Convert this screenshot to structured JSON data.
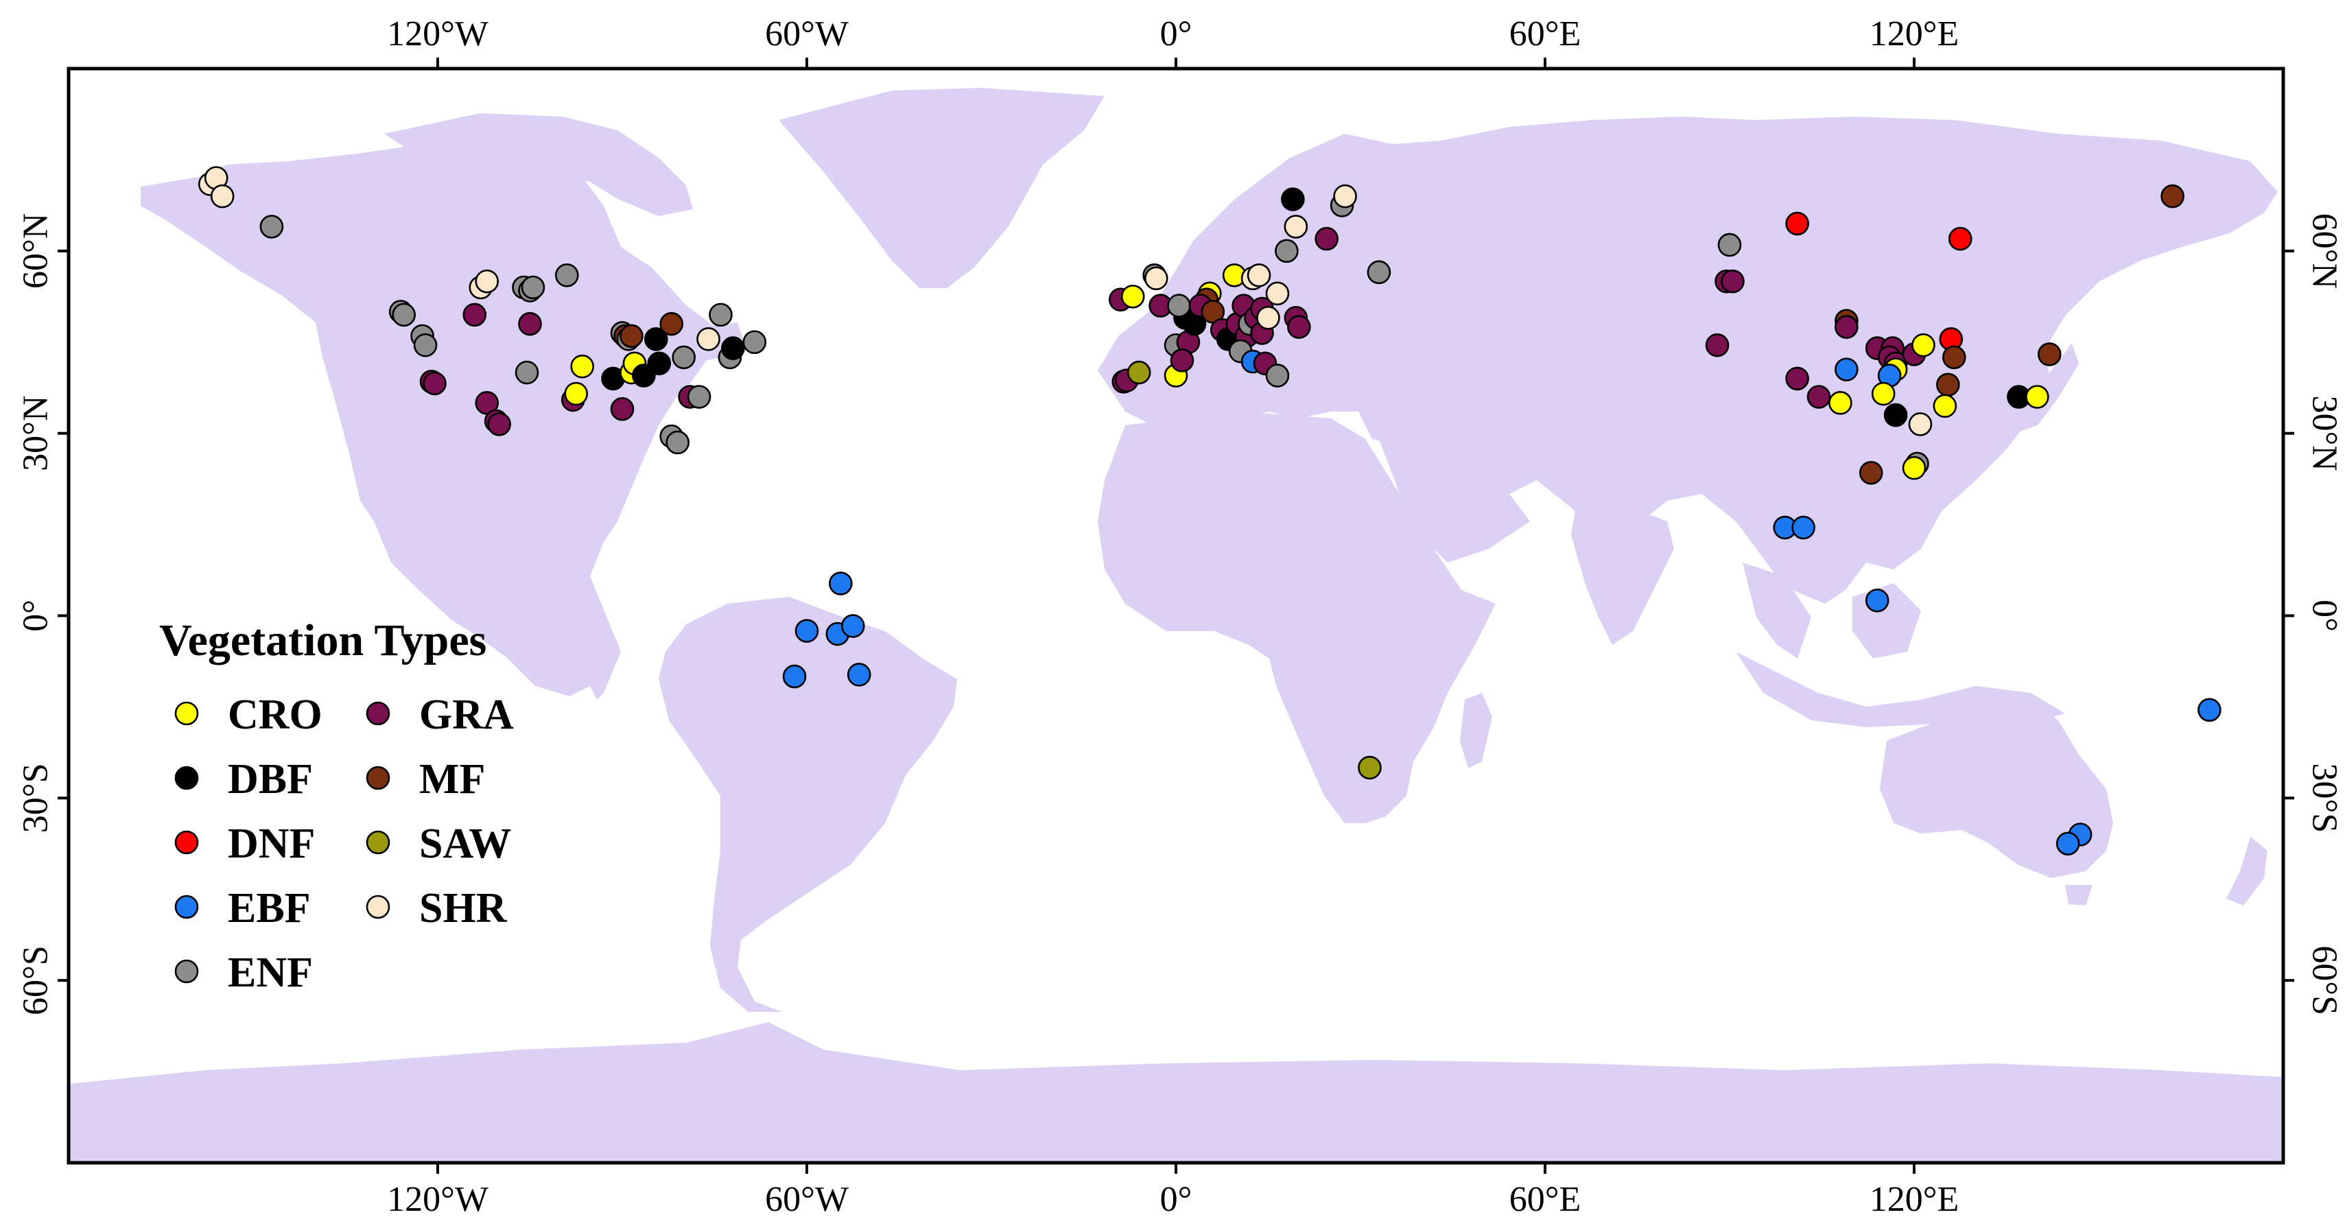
{
  "map": {
    "lon_range": [
      -180,
      180
    ],
    "lat_range": [
      -90,
      90
    ],
    "land_color": "#dcd1f4",
    "ocean_color": "#ffffff",
    "x_ticks": [
      {
        "lon": -120,
        "label": "120°W"
      },
      {
        "lon": -60,
        "label": "60°W"
      },
      {
        "lon": 0,
        "label": "0°"
      },
      {
        "lon": 60,
        "label": "60°E"
      },
      {
        "lon": 120,
        "label": "120°E"
      }
    ],
    "y_ticks": [
      {
        "lat": 60,
        "label": "60°N"
      },
      {
        "lat": 30,
        "label": "30°N"
      },
      {
        "lat": 0,
        "label": "0°"
      },
      {
        "lat": -30,
        "label": "30°S"
      },
      {
        "lat": -60,
        "label": "60°S"
      }
    ]
  },
  "legend": {
    "title": "Vegetation Types",
    "placement": "lower-left",
    "items": [
      {
        "code": "CRO",
        "color": "#ffff00"
      },
      {
        "code": "DBF",
        "color": "#000000"
      },
      {
        "code": "DNF",
        "color": "#ff0000"
      },
      {
        "code": "EBF",
        "color": "#1e78f0"
      },
      {
        "code": "ENF",
        "color": "#8c8c8c"
      },
      {
        "code": "GRA",
        "color": "#7a0f50"
      },
      {
        "code": "MF",
        "color": "#7a3010"
      },
      {
        "code": "SAW",
        "color": "#9a9a10"
      },
      {
        "code": "SHR",
        "color": "#fbe8cc"
      }
    ]
  },
  "sites": [
    {
      "type": "SHR",
      "lon": -157,
      "lat": 71
    },
    {
      "type": "SHR",
      "lon": -156,
      "lat": 72
    },
    {
      "type": "SHR",
      "lon": -155,
      "lat": 69
    },
    {
      "type": "ENF",
      "lon": -147,
      "lat": 64
    },
    {
      "type": "ENF",
      "lon": -126,
      "lat": 50
    },
    {
      "type": "ENF",
      "lon": -125.5,
      "lat": 49.5
    },
    {
      "type": "ENF",
      "lon": -122.5,
      "lat": 46
    },
    {
      "type": "ENF",
      "lon": -122,
      "lat": 44.5
    },
    {
      "type": "GRA",
      "lon": -121,
      "lat": 38.5
    },
    {
      "type": "GRA",
      "lon": -120.5,
      "lat": 38.2
    },
    {
      "type": "SHR",
      "lon": -113,
      "lat": 54
    },
    {
      "type": "SHR",
      "lon": -112,
      "lat": 55
    },
    {
      "type": "GRA",
      "lon": -114,
      "lat": 49.5
    },
    {
      "type": "GRA",
      "lon": -112,
      "lat": 35
    },
    {
      "type": "GRA",
      "lon": -110.5,
      "lat": 32
    },
    {
      "type": "GRA",
      "lon": -110,
      "lat": 31.5
    },
    {
      "type": "ENF",
      "lon": -106,
      "lat": 54
    },
    {
      "type": "ENF",
      "lon": -105,
      "lat": 53.5
    },
    {
      "type": "ENF",
      "lon": -104.5,
      "lat": 54
    },
    {
      "type": "GRA",
      "lon": -105,
      "lat": 48
    },
    {
      "type": "ENF",
      "lon": -105.5,
      "lat": 40
    },
    {
      "type": "ENF",
      "lon": -99,
      "lat": 56
    },
    {
      "type": "GRA",
      "lon": -98,
      "lat": 35.5
    },
    {
      "type": "CRO",
      "lon": -97.5,
      "lat": 36.5
    },
    {
      "type": "CRO",
      "lon": -96.5,
      "lat": 41
    },
    {
      "type": "ENF",
      "lon": -90,
      "lat": 46.5
    },
    {
      "type": "MF",
      "lon": -89.5,
      "lat": 46
    },
    {
      "type": "ENF",
      "lon": -89,
      "lat": 45.5
    },
    {
      "type": "MF",
      "lon": -88.5,
      "lat": 46
    },
    {
      "type": "DBF",
      "lon": -91.5,
      "lat": 39
    },
    {
      "type": "CRO",
      "lon": -88.5,
      "lat": 40
    },
    {
      "type": "CRO",
      "lon": -88,
      "lat": 41.5
    },
    {
      "type": "GRA",
      "lon": -90,
      "lat": 34
    },
    {
      "type": "DBF",
      "lon": -86.5,
      "lat": 39.5
    },
    {
      "type": "DBF",
      "lon": -84.5,
      "lat": 45.5
    },
    {
      "type": "DBF",
      "lon": -84,
      "lat": 41.5
    },
    {
      "type": "MF",
      "lon": -82,
      "lat": 48
    },
    {
      "type": "ENF",
      "lon": -80,
      "lat": 42.5
    },
    {
      "type": "GRA",
      "lon": -79,
      "lat": 36
    },
    {
      "type": "ENF",
      "lon": -77.5,
      "lat": 36
    },
    {
      "type": "ENF",
      "lon": -82,
      "lat": 29.5
    },
    {
      "type": "ENF",
      "lon": -81,
      "lat": 28.5
    },
    {
      "type": "SHR",
      "lon": -76,
      "lat": 45.5
    },
    {
      "type": "ENF",
      "lon": -74,
      "lat": 49.5
    },
    {
      "type": "ENF",
      "lon": -72.5,
      "lat": 42.5
    },
    {
      "type": "DBF",
      "lon": -72,
      "lat": 44
    },
    {
      "type": "ENF",
      "lon": -68.5,
      "lat": 45
    },
    {
      "type": "EBF",
      "lon": -54.5,
      "lat": 5.3
    },
    {
      "type": "EBF",
      "lon": -60,
      "lat": -2.5
    },
    {
      "type": "EBF",
      "lon": -55,
      "lat": -3
    },
    {
      "type": "EBF",
      "lon": -52.5,
      "lat": -1.7
    },
    {
      "type": "EBF",
      "lon": -62,
      "lat": -10
    },
    {
      "type": "EBF",
      "lon": -51.5,
      "lat": -9.7
    },
    {
      "type": "GRA",
      "lon": -9,
      "lat": 52
    },
    {
      "type": "CRO",
      "lon": -7,
      "lat": 52.5
    },
    {
      "type": "GRA",
      "lon": -8.5,
      "lat": 38.5
    },
    {
      "type": "GRA",
      "lon": -8,
      "lat": 38.7
    },
    {
      "type": "SAW",
      "lon": -6,
      "lat": 40
    },
    {
      "type": "ENF",
      "lon": -3.5,
      "lat": 56
    },
    {
      "type": "SHR",
      "lon": -3.2,
      "lat": 55.5
    },
    {
      "type": "GRA",
      "lon": -2.5,
      "lat": 51
    },
    {
      "type": "DBF",
      "lon": 1.5,
      "lat": 49
    },
    {
      "type": "ENF",
      "lon": 0,
      "lat": 44.5
    },
    {
      "type": "CRO",
      "lon": 0,
      "lat": 39.5
    },
    {
      "type": "GRA",
      "lon": 2,
      "lat": 45
    },
    {
      "type": "GRA",
      "lon": 1,
      "lat": 42
    },
    {
      "type": "DBF",
      "lon": 3,
      "lat": 48
    },
    {
      "type": "ENF",
      "lon": 0.5,
      "lat": 51
    },
    {
      "type": "CRO",
      "lon": 5.5,
      "lat": 53
    },
    {
      "type": "MF",
      "lon": 5,
      "lat": 52
    },
    {
      "type": "GRA",
      "lon": 4,
      "lat": 51
    },
    {
      "type": "MF",
      "lon": 6,
      "lat": 50
    },
    {
      "type": "GRA",
      "lon": 7.5,
      "lat": 47
    },
    {
      "type": "DBF",
      "lon": 8.5,
      "lat": 45.5
    },
    {
      "type": "CRO",
      "lon": 9.5,
      "lat": 56
    },
    {
      "type": "GRA",
      "lon": 10,
      "lat": 48
    },
    {
      "type": "GRA",
      "lon": 11,
      "lat": 51
    },
    {
      "type": "GRA",
      "lon": 11.5,
      "lat": 46
    },
    {
      "type": "ENF",
      "lon": 10.5,
      "lat": 43.5
    },
    {
      "type": "EBF",
      "lon": 12.5,
      "lat": 41.8
    },
    {
      "type": "ENF",
      "lon": 12,
      "lat": 48
    },
    {
      "type": "GRA",
      "lon": 13,
      "lat": 49
    },
    {
      "type": "SHR",
      "lon": 12.5,
      "lat": 55.5
    },
    {
      "type": "SHR",
      "lon": 13.5,
      "lat": 56
    },
    {
      "type": "GRA",
      "lon": 14,
      "lat": 50.5
    },
    {
      "type": "GRA",
      "lon": 14,
      "lat": 46.5
    },
    {
      "type": "GRA",
      "lon": 14.5,
      "lat": 41.5
    },
    {
      "type": "SHR",
      "lon": 15,
      "lat": 49
    },
    {
      "type": "ENF",
      "lon": 16.5,
      "lat": 39.5
    },
    {
      "type": "SHR",
      "lon": 16.5,
      "lat": 53
    },
    {
      "type": "ENF",
      "lon": 18,
      "lat": 60
    },
    {
      "type": "DBF",
      "lon": 19,
      "lat": 68.5
    },
    {
      "type": "SHR",
      "lon": 19.5,
      "lat": 64
    },
    {
      "type": "GRA",
      "lon": 19.5,
      "lat": 49
    },
    {
      "type": "GRA",
      "lon": 20,
      "lat": 47.5
    },
    {
      "type": "GRA",
      "lon": 24.5,
      "lat": 62
    },
    {
      "type": "ENF",
      "lon": 27,
      "lat": 67.5
    },
    {
      "type": "SHR",
      "lon": 27.5,
      "lat": 69
    },
    {
      "type": "ENF",
      "lon": 33,
      "lat": 56.5
    },
    {
      "type": "SAW",
      "lon": 31.5,
      "lat": -25
    },
    {
      "type": "ENF",
      "lon": 90,
      "lat": 61
    },
    {
      "type": "GRA",
      "lon": 89.5,
      "lat": 55
    },
    {
      "type": "GRA",
      "lon": 90.5,
      "lat": 55
    },
    {
      "type": "GRA",
      "lon": 88,
      "lat": 44.5
    },
    {
      "type": "DNF",
      "lon": 101,
      "lat": 64.5
    },
    {
      "type": "GRA",
      "lon": 101,
      "lat": 39
    },
    {
      "type": "GRA",
      "lon": 104.5,
      "lat": 36
    },
    {
      "type": "MF",
      "lon": 109,
      "lat": 48.5
    },
    {
      "type": "GRA",
      "lon": 109,
      "lat": 47.5
    },
    {
      "type": "EBF",
      "lon": 109,
      "lat": 40.5
    },
    {
      "type": "CRO",
      "lon": 108,
      "lat": 35
    },
    {
      "type": "MF",
      "lon": 113,
      "lat": 23.5
    },
    {
      "type": "GRA",
      "lon": 114,
      "lat": 44
    },
    {
      "type": "GRA",
      "lon": 116.5,
      "lat": 44
    },
    {
      "type": "GRA",
      "lon": 116,
      "lat": 42.5
    },
    {
      "type": "GRA",
      "lon": 117,
      "lat": 41.5
    },
    {
      "type": "CRO",
      "lon": 117,
      "lat": 40.5
    },
    {
      "type": "EBF",
      "lon": 116,
      "lat": 39.5
    },
    {
      "type": "CRO",
      "lon": 115,
      "lat": 36.5
    },
    {
      "type": "DBF",
      "lon": 117,
      "lat": 33
    },
    {
      "type": "GRA",
      "lon": 120,
      "lat": 43
    },
    {
      "type": "CRO",
      "lon": 121.5,
      "lat": 44.5
    },
    {
      "type": "SHR",
      "lon": 121,
      "lat": 31.5
    },
    {
      "type": "ENF",
      "lon": 120.5,
      "lat": 25
    },
    {
      "type": "CRO",
      "lon": 120,
      "lat": 24.3
    },
    {
      "type": "EBF",
      "lon": 99,
      "lat": 14.5
    },
    {
      "type": "EBF",
      "lon": 102,
      "lat": 14.5
    },
    {
      "type": "EBF",
      "lon": 114,
      "lat": 2.5
    },
    {
      "type": "DNF",
      "lon": 126,
      "lat": 45.5
    },
    {
      "type": "MF",
      "lon": 126.5,
      "lat": 42.5
    },
    {
      "type": "MF",
      "lon": 125.5,
      "lat": 38
    },
    {
      "type": "CRO",
      "lon": 125,
      "lat": 34.5
    },
    {
      "type": "DNF",
      "lon": 127.5,
      "lat": 62
    },
    {
      "type": "DBF",
      "lon": 137,
      "lat": 36
    },
    {
      "type": "CRO",
      "lon": 140,
      "lat": 36
    },
    {
      "type": "MF",
      "lon": 142,
      "lat": 43
    },
    {
      "type": "MF",
      "lon": 162,
      "lat": 69
    },
    {
      "type": "EBF",
      "lon": 147,
      "lat": -36
    },
    {
      "type": "EBF",
      "lon": 145,
      "lat": -37.5
    },
    {
      "type": "EBF",
      "lon": 168,
      "lat": -15.5
    }
  ]
}
